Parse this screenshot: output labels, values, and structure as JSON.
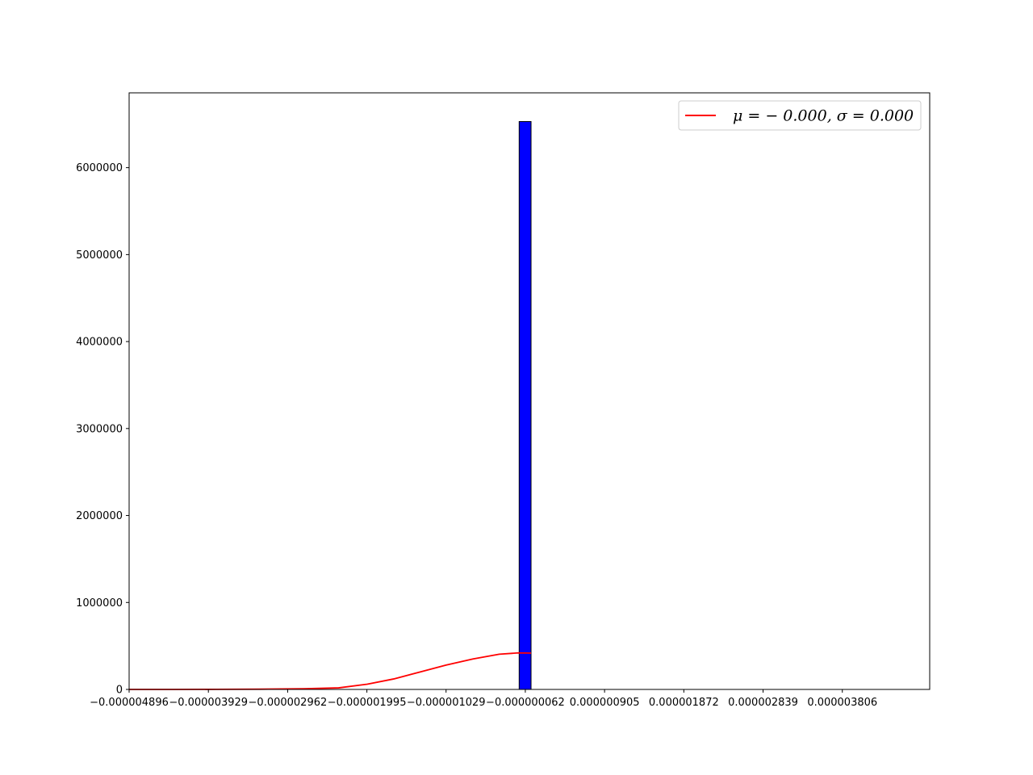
{
  "chart_data": {
    "type": "bar",
    "title": "",
    "xlabel": "",
    "ylabel": "",
    "grid": false,
    "legend_position": "top-right",
    "xlim": [
      -4.896e-06,
      4.872e-06
    ],
    "ylim": [
      0,
      6860000
    ],
    "x_ticks": [
      {
        "value": -4.896e-06,
        "label": "−0.000004896"
      },
      {
        "value": -3.929e-06,
        "label": "−0.000003929"
      },
      {
        "value": -2.962e-06,
        "label": "−0.000002962"
      },
      {
        "value": -1.995e-06,
        "label": "−0.000001995"
      },
      {
        "value": -1.029e-06,
        "label": "−0.000001029"
      },
      {
        "value": -6.2e-08,
        "label": "−0.000000062"
      },
      {
        "value": 9.05e-07,
        "label": "0.000000905"
      },
      {
        "value": 1.872e-06,
        "label": "0.000001872"
      },
      {
        "value": 2.839e-06,
        "label": "0.000002839"
      },
      {
        "value": 3.806e-06,
        "label": "0.000003806"
      }
    ],
    "y_ticks": [
      {
        "value": 0,
        "label": "0"
      },
      {
        "value": 1000000,
        "label": "1000000"
      },
      {
        "value": 2000000,
        "label": "2000000"
      },
      {
        "value": 3000000,
        "label": "3000000"
      },
      {
        "value": 4000000,
        "label": "4000000"
      },
      {
        "value": 5000000,
        "label": "5000000"
      },
      {
        "value": 6000000,
        "label": "6000000"
      }
    ],
    "histogram": {
      "bin_width": 1.45e-07,
      "bins": [
        {
          "x_start": -1.37e-07,
          "x_end": 8e-09,
          "value": 6530000
        }
      ],
      "fill_color": "#0000ff",
      "edge_color": "#000000"
    },
    "series": [
      {
        "type": "line",
        "name": "μ = − 0.000,  σ = 0.000",
        "color": "#ff0000",
        "x": [
          -4.896e-06,
          -4.36e-06,
          -3.83e-06,
          -3.3e-06,
          -2.77e-06,
          -2.34e-06,
          -1.99e-06,
          -1.67e-06,
          -1.35e-06,
          -1.03e-06,
          -7e-07,
          -3.8e-07,
          -1.5e-07,
          8e-09
        ],
        "y": [
          0,
          200,
          1000,
          3000,
          8000,
          18000,
          60000,
          120000,
          200000,
          280000,
          350000,
          405000,
          420000,
          418000
        ]
      }
    ]
  }
}
